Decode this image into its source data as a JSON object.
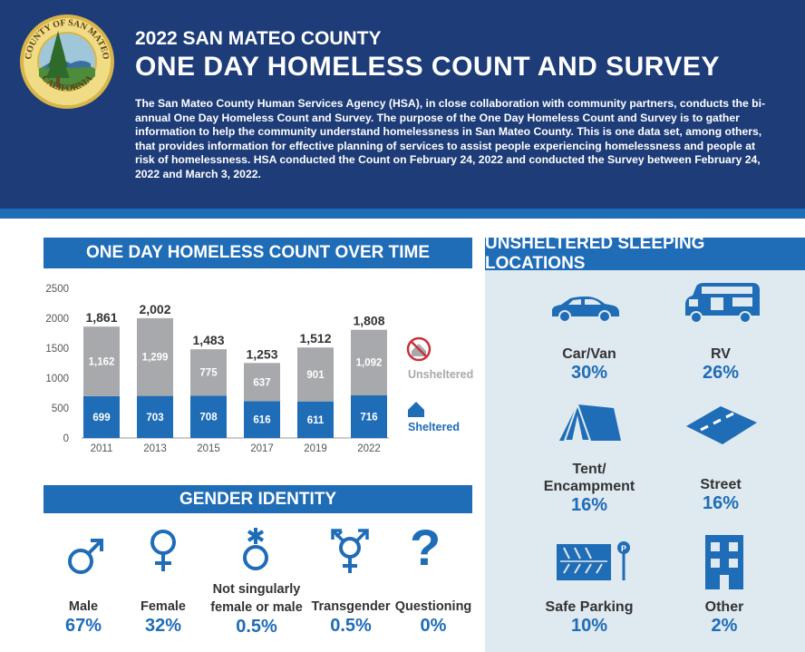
{
  "header": {
    "seal_text_top": "COUNTY OF SAN MATEO",
    "seal_text_bottom": "CALIFORNIA",
    "subtitle": "2022 SAN MATEO COUNTY",
    "title": "ONE DAY HOMELESS COUNT AND SURVEY",
    "intro": "The San Mateo County Human Services Agency (HSA), in close collaboration with community partners, conducts the bi-annual One Day Homeless Count and Survey. The purpose of the One Day Homeless Count and Survey is to gather information to help the community understand homelessness in San Mateo County. This is one data set, among others, that provides information for effective planning of services to assist people experiencing homelessness and people at risk of homelessness. HSA conducted the Count on February 24, 2022 and conducted the Survey between February 24, 2022 and March 3, 2022."
  },
  "sections": {
    "count_title": "ONE DAY HOMELESS COUNT OVER TIME",
    "gender_title": "GENDER IDENTITY",
    "locations_title": "UNSHELTERED SLEEPING LOCATIONS"
  },
  "colors": {
    "navy": "#1d3c78",
    "accent": "#1f6cb7",
    "unsheltered_gray": "#a7a9ac",
    "no_shelter_red": "#c8323a",
    "panel_bg": "#dfe9f0"
  },
  "chart_data": {
    "type": "bar",
    "stacked": true,
    "categories": [
      "2011",
      "2013",
      "2015",
      "2017",
      "2019",
      "2022"
    ],
    "series": [
      {
        "name": "Sheltered",
        "values": [
          699,
          703,
          708,
          616,
          611,
          716
        ],
        "color": "#1f6cb7"
      },
      {
        "name": "Unsheltered",
        "values": [
          1162,
          1299,
          775,
          637,
          901,
          1092
        ],
        "color": "#a7a9ac"
      }
    ],
    "totals": [
      "1,861",
      "2,002",
      "1,483",
      "1,253",
      "1,512",
      "1,808"
    ],
    "ylim": [
      0,
      2500
    ],
    "yticks": [
      "0",
      "500",
      "1000",
      "1500",
      "2000",
      "2500"
    ],
    "legend_position": "right",
    "grid": false
  },
  "gender": [
    {
      "label": "Male",
      "pct": "67%",
      "icon": "male-icon"
    },
    {
      "label": "Female",
      "pct": "32%",
      "icon": "female-icon"
    },
    {
      "label": "Not singularly female or male",
      "label_line1": "Not singularly",
      "label_line2": "female or male",
      "pct": "0.5%",
      "icon": "nonbinary-icon"
    },
    {
      "label": "Transgender",
      "pct": "0.5%",
      "icon": "transgender-icon"
    },
    {
      "label": "Questioning",
      "pct": "0%",
      "icon": "question-mark-icon"
    }
  ],
  "locations": [
    {
      "label": "Car/Van",
      "pct": "30%",
      "icon": "car-icon"
    },
    {
      "label": "RV",
      "pct": "26%",
      "icon": "rv-icon"
    },
    {
      "label_line1": "Tent/",
      "label_line2": "Encampment",
      "pct": "16%",
      "icon": "tent-icon"
    },
    {
      "label": "Street",
      "pct": "16%",
      "icon": "street-icon"
    },
    {
      "label": "Safe Parking",
      "pct": "10%",
      "icon": "parking-icon"
    },
    {
      "label": "Other",
      "pct": "2%",
      "icon": "building-icon"
    }
  ]
}
